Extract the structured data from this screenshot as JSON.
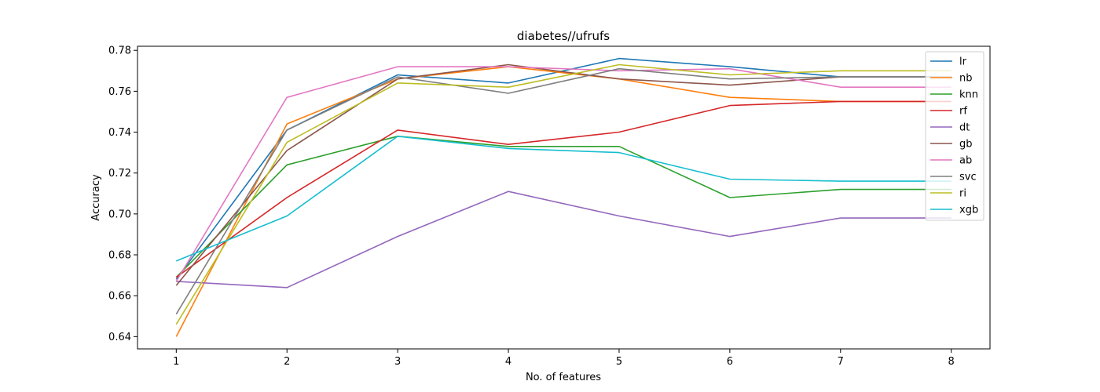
{
  "chart_data": {
    "type": "line",
    "title": "diabetes//ufrufs",
    "xlabel": "No. of features",
    "ylabel": "Accuracy",
    "x": [
      1,
      2,
      3,
      4,
      5,
      6,
      7,
      8
    ],
    "xlim": [
      0.65,
      8.35
    ],
    "ylim": [
      0.634,
      0.782
    ],
    "yticks": [
      0.64,
      0.66,
      0.68,
      0.7,
      0.72,
      0.74,
      0.76,
      0.78
    ],
    "ytick_labels": [
      "0.64",
      "0.66",
      "0.68",
      "0.70",
      "0.72",
      "0.74",
      "0.76",
      "0.78"
    ],
    "xtick_labels": [
      "1",
      "2",
      "3",
      "4",
      "5",
      "6",
      "7",
      "8"
    ],
    "grid": false,
    "legend_position": "top-right",
    "series": [
      {
        "name": "lr",
        "color": "#1f77b4",
        "values": [
          0.668,
          0.741,
          0.768,
          0.764,
          0.776,
          0.772,
          0.767,
          0.767
        ]
      },
      {
        "name": "nb",
        "color": "#ff7f0e",
        "values": [
          0.64,
          0.744,
          0.766,
          0.772,
          0.766,
          0.757,
          0.755,
          0.755
        ]
      },
      {
        "name": "knn",
        "color": "#2ca02c",
        "values": [
          0.669,
          0.724,
          0.738,
          0.733,
          0.733,
          0.708,
          0.712,
          0.712
        ]
      },
      {
        "name": "rf",
        "color": "#d62728",
        "values": [
          0.669,
          0.708,
          0.741,
          0.734,
          0.74,
          0.753,
          0.755,
          0.755
        ]
      },
      {
        "name": "dt",
        "color": "#9467bd",
        "values": [
          0.667,
          0.664,
          0.689,
          0.711,
          0.699,
          0.689,
          0.698,
          0.698
        ]
      },
      {
        "name": "gb",
        "color": "#8c564b",
        "values": [
          0.665,
          0.731,
          0.766,
          0.773,
          0.766,
          0.763,
          0.767,
          0.767
        ]
      },
      {
        "name": "ab",
        "color": "#e377c2",
        "values": [
          0.667,
          0.757,
          0.772,
          0.772,
          0.77,
          0.771,
          0.762,
          0.762
        ]
      },
      {
        "name": "svc",
        "color": "#7f7f7f",
        "values": [
          0.651,
          0.741,
          0.767,
          0.759,
          0.771,
          0.766,
          0.767,
          0.767
        ]
      },
      {
        "name": "ri",
        "color": "#bcbd22",
        "values": [
          0.646,
          0.735,
          0.764,
          0.762,
          0.773,
          0.768,
          0.77,
          0.77
        ]
      },
      {
        "name": "xgb",
        "color": "#17becf",
        "values": [
          0.677,
          0.699,
          0.738,
          0.732,
          0.73,
          0.717,
          0.716,
          0.716
        ]
      }
    ]
  }
}
